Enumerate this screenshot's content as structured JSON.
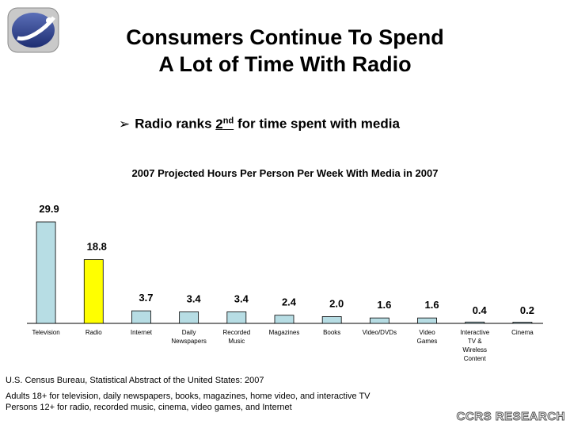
{
  "slide": {
    "title_line1": "Consumers Continue To Spend",
    "title_line2": "A Lot of Time With Radio",
    "bullet_prefix": "Radio ranks ",
    "bullet_rank": "2",
    "bullet_rank_suffix": "nd",
    "bullet_rest": " for time spent with media",
    "source": "U.S. Census Bureau, Statistical Abstract of the United States:  2007",
    "note_line1": "Adults 18+ for television, daily newspapers, books, magazines, home video, and interactive TV",
    "note_line2": "Persons 12+ for radio, recorded music, cinema, video games, and Internet",
    "brand": "CCRS RESEARCH"
  },
  "logo": {
    "icon": "globe-logo-icon",
    "color": "#2b3f8c"
  },
  "chart_data": {
    "type": "bar",
    "title": "2007 Projected Hours Per Person Per Week With Media in 2007",
    "categories": [
      [
        "Television"
      ],
      [
        "Radio"
      ],
      [
        "Internet"
      ],
      [
        "Daily",
        "Newspapers"
      ],
      [
        "Recorded",
        "Music"
      ],
      [
        "Magazines"
      ],
      [
        "Books"
      ],
      [
        "Video/DVDs"
      ],
      [
        "Video",
        "Games"
      ],
      [
        "Interactive",
        "TV &",
        "Wireless",
        "Content"
      ],
      [
        "Cinema"
      ]
    ],
    "values": [
      29.9,
      18.8,
      3.7,
      3.4,
      3.4,
      2.4,
      2.0,
      1.6,
      1.6,
      0.4,
      0.2
    ],
    "value_labels": [
      "29.9",
      "18.8",
      "3.7",
      "3.4",
      "3.4",
      "2.4",
      "2.0",
      "1.6",
      "1.6",
      "0.4",
      "0.2"
    ],
    "colors": [
      "#b7dde4",
      "#ffff00",
      "#b7dde4",
      "#b7dde4",
      "#b7dde4",
      "#b7dde4",
      "#b7dde4",
      "#b7dde4",
      "#b7dde4",
      "#b7dde4",
      "#b7dde4"
    ],
    "xlabel": "",
    "ylabel": "",
    "ylim": [
      0,
      30
    ],
    "grid": false,
    "legend": "none"
  }
}
